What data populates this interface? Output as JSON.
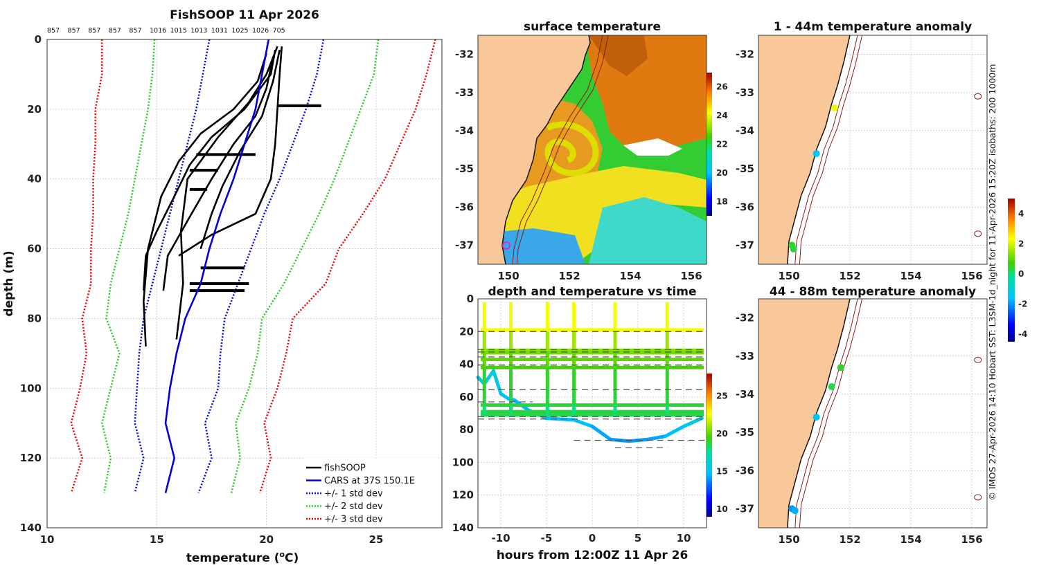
{
  "chart_data": [
    {
      "type": "line",
      "title": "FishSOOP 11 Apr 2026",
      "xlabel": "temperature (°C)",
      "xlabel_main": "temperature (",
      "xlabel_super": "o",
      "xlabel_tail": "C)",
      "ylabel": "depth (m)",
      "xlim": [
        10,
        28
      ],
      "ylim": [
        0,
        140
      ],
      "xticks": [
        10,
        15,
        20,
        25
      ],
      "yticks": [
        0,
        20,
        40,
        60,
        80,
        100,
        120,
        140
      ],
      "top_labels": [
        "857",
        "857",
        "857",
        "857",
        "857",
        "1016",
        "1015",
        "1013",
        "1031",
        "1025",
        "1026",
        "705"
      ],
      "legend": [
        {
          "label": "fishSOOP",
          "color": "#000000",
          "style": "solid"
        },
        {
          "label": "CARS at 37S 150.1E",
          "color": "#0000dd",
          "style": "solid"
        },
        {
          "label": "+/- 1 std dev",
          "color": "#0000dd",
          "style": "dotted"
        },
        {
          "label": "+/- 2 std dev",
          "color": "#22cc22",
          "style": "dotted"
        },
        {
          "label": "+/- 3 std dev",
          "color": "#ee0000",
          "style": "dotted"
        }
      ],
      "depths": [
        0,
        10,
        20,
        30,
        40,
        50,
        60,
        70,
        80,
        90,
        100,
        110,
        120,
        130
      ],
      "cars_mean": [
        20.1,
        19.8,
        19.5,
        19.0,
        18.5,
        17.9,
        17.4,
        17.0,
        16.3,
        15.9,
        15.6,
        15.4,
        15.8,
        15.4
      ],
      "plus1": [
        22.6,
        22.3,
        21.8,
        21.2,
        20.6,
        19.9,
        19.3,
        18.7,
        18.1,
        17.9,
        17.8,
        17.2,
        17.5,
        16.9
      ],
      "minus1": [
        17.4,
        17.1,
        16.8,
        16.4,
        16.0,
        15.6,
        15.2,
        14.8,
        14.4,
        14.2,
        14.1,
        14.0,
        14.4,
        14.0
      ],
      "plus2": [
        25.1,
        24.9,
        24.3,
        23.7,
        23.1,
        22.4,
        21.6,
        20.8,
        19.8,
        19.6,
        19.2,
        18.6,
        18.8,
        18.4
      ],
      "minus2": [
        14.9,
        14.8,
        14.6,
        14.3,
        14.0,
        13.7,
        13.3,
        12.9,
        12.7,
        13.3,
        12.9,
        12.5,
        12.9,
        12.6
      ],
      "plus3": [
        27.7,
        27.3,
        26.8,
        26.1,
        25.4,
        24.4,
        23.3,
        22.7,
        21.2,
        20.9,
        20.5,
        19.9,
        20.2,
        19.7
      ],
      "minus3": [
        12.5,
        12.5,
        12.2,
        12.2,
        12.1,
        12.1,
        12.0,
        12.0,
        11.6,
        11.8,
        11.5,
        11.1,
        11.6,
        11.1
      ],
      "fishsoop_profiles": [
        {
          "t": [
            20.7,
            20.6,
            20.5,
            20.4,
            20.2,
            19.5,
            17.5,
            16.5,
            16.0
          ],
          "d": [
            2,
            10,
            20,
            30,
            40,
            50,
            56,
            60,
            62
          ]
        },
        {
          "t": [
            20.4,
            20.2,
            19.0,
            17.5,
            16.5,
            15.8,
            15.0,
            14.5,
            14.4
          ],
          "d": [
            3,
            10,
            20,
            28,
            36,
            45,
            55,
            62,
            72
          ]
        },
        {
          "t": [
            20.0,
            19.6,
            18.5,
            17.0,
            16.0,
            15.2,
            14.6,
            14.4,
            14.5
          ],
          "d": [
            4,
            12,
            20,
            27,
            35,
            45,
            60,
            75,
            88
          ]
        },
        {
          "t": [
            20.6,
            20.3,
            19.8,
            18.8,
            18.0,
            17.5,
            17.2,
            17.0
          ],
          "d": [
            3,
            12,
            22,
            32,
            42,
            50,
            56,
            60
          ]
        },
        {
          "t": [
            20.3,
            20.0,
            19.5,
            18.5,
            17.5,
            16.4,
            15.5,
            15.3
          ],
          "d": [
            5,
            14,
            22,
            30,
            40,
            52,
            62,
            72
          ]
        },
        {
          "t": [
            20.5,
            20.0,
            19.2,
            17.8,
            16.4,
            16.1,
            16.2,
            15.9
          ],
          "d": [
            2,
            10,
            18,
            28,
            40,
            55,
            70,
            86
          ]
        }
      ],
      "fishsoop_bursts": [
        {
          "t_min": 20.5,
          "t_max": 22.5,
          "d": 19
        },
        {
          "t_min": 16.8,
          "t_max": 19.5,
          "d": 33
        },
        {
          "t_min": 16.5,
          "t_max": 17.8,
          "d": 37.5
        },
        {
          "t_min": 16.5,
          "t_max": 17.3,
          "d": 43
        },
        {
          "t_min": 17.0,
          "t_max": 19.0,
          "d": 65.5
        },
        {
          "t_min": 16.5,
          "t_max": 19.2,
          "d": 70
        },
        {
          "t_min": 16.5,
          "t_max": 19.0,
          "d": 72
        }
      ]
    },
    {
      "type": "heatmap",
      "title": "surface temperature",
      "xlim": [
        149,
        156.5
      ],
      "ylim": [
        -37.5,
        -31.5
      ],
      "xticks": [
        150,
        152,
        154,
        156
      ],
      "yticks": [
        -32,
        -33,
        -34,
        -35,
        -36,
        -37
      ],
      "colorbar_ticks": [
        18,
        20,
        22,
        24,
        26
      ],
      "colorbar_range": [
        17,
        27
      ]
    },
    {
      "type": "scatter",
      "title": "depth and temperature vs time",
      "xlabel": "hours from 12:00Z 11 Apr 26",
      "ylabel": "",
      "xlim": [
        -12.5,
        12.5
      ],
      "ylim": [
        0,
        140
      ],
      "xticks": [
        -10,
        -5,
        0,
        5,
        10
      ],
      "yticks": [
        0,
        20,
        40,
        60,
        80,
        100,
        120,
        140
      ],
      "colorbar_ticks": [
        10,
        15,
        20,
        25
      ],
      "colorbar_range": [
        9,
        28
      ],
      "casts_hours": [
        -11.8,
        -8.9,
        -4.9,
        -2.0,
        2.5,
        8.2
      ],
      "horizontal_tracks": [
        {
          "depth": 19,
          "temp": 22.5
        },
        {
          "depth": 31.5,
          "temp": 20.5
        },
        {
          "depth": 33,
          "temp": 20.3
        },
        {
          "depth": 37,
          "temp": 20.0
        },
        {
          "depth": 42,
          "temp": 19.5
        },
        {
          "depth": 65,
          "temp": 18.8
        },
        {
          "depth": 69,
          "temp": 18.7
        },
        {
          "depth": 71,
          "temp": 18.6
        }
      ],
      "dashed_levels": [
        {
          "depth": 20,
          "x_from": -12.5,
          "x_to": 12.5
        },
        {
          "depth": 31,
          "x_from": -12.5,
          "x_to": 12.5
        },
        {
          "depth": 32.5,
          "x_from": -12.5,
          "x_to": 12.5
        },
        {
          "depth": 35.5,
          "x_from": -12.5,
          "x_to": 12.5
        },
        {
          "depth": 40.5,
          "x_from": -12.5,
          "x_to": 12.5
        },
        {
          "depth": 55.5,
          "x_from": -12.5,
          "x_to": 12.5
        },
        {
          "depth": 63,
          "x_from": -12.5,
          "x_to": -6.5
        },
        {
          "depth": 72,
          "x_from": -12.5,
          "x_to": 12.5
        },
        {
          "depth": 73.5,
          "x_from": -12.5,
          "x_to": 12.5
        },
        {
          "depth": 86.5,
          "x_from": -2.0,
          "x_to": 12.5
        },
        {
          "depth": 91,
          "x_from": 2.5,
          "x_to": 8.2
        }
      ],
      "bottom_trace": [
        {
          "h": -12.5,
          "d": 48,
          "temp": 16
        },
        {
          "h": -11.8,
          "d": 52,
          "temp": 15.5
        },
        {
          "h": -10.8,
          "d": 44,
          "temp": 16
        },
        {
          "h": -10.0,
          "d": 58,
          "temp": 15
        },
        {
          "h": -9.2,
          "d": 61,
          "temp": 14.5
        },
        {
          "h": -8.5,
          "d": 62,
          "temp": 14.5
        },
        {
          "h": -7.0,
          "d": 68,
          "temp": 14.5
        },
        {
          "h": -5.0,
          "d": 73,
          "temp": 14.5
        },
        {
          "h": -2.0,
          "d": 74,
          "temp": 15
        },
        {
          "h": 0.0,
          "d": 78,
          "temp": 14.5
        },
        {
          "h": 2.0,
          "d": 86,
          "temp": 14.0
        },
        {
          "h": 4.0,
          "d": 87,
          "temp": 14.0
        },
        {
          "h": 6.0,
          "d": 86,
          "temp": 14.0
        },
        {
          "h": 8.0,
          "d": 84,
          "temp": 14.5
        },
        {
          "h": 10.0,
          "d": 78,
          "temp": 15.0
        },
        {
          "h": 12.0,
          "d": 73,
          "temp": 16.0
        }
      ]
    },
    {
      "type": "scatter",
      "title": "1 - 44m temperature anomaly",
      "xlim": [
        149,
        156.5
      ],
      "ylim": [
        -37.5,
        -31.5
      ],
      "xticks": [
        150,
        152,
        154,
        156
      ],
      "yticks": [
        -32,
        -33,
        -34,
        -35,
        -36,
        -37
      ],
      "points": [
        {
          "lon": 151.5,
          "lat": -33.4,
          "anom": 2.2
        },
        {
          "lon": 150.9,
          "lat": -34.6,
          "anom": -1.5
        },
        {
          "lon": 150.1,
          "lat": -37.0,
          "anom": 0.5
        },
        {
          "lon": 150.15,
          "lat": -37.1,
          "anom": 0.4
        }
      ]
    },
    {
      "type": "scatter",
      "title": "44 - 88m temperature anomaly",
      "xlim": [
        149,
        156.5
      ],
      "ylim": [
        -37.5,
        -31.5
      ],
      "xticks": [
        150,
        152,
        154,
        156
      ],
      "yticks": [
        -32,
        -33,
        -34,
        -35,
        -36,
        -37
      ],
      "colorbar_ticks": [
        4,
        2,
        0,
        -2,
        -4
      ],
      "colorbar_range": [
        -4.5,
        5
      ],
      "points": [
        {
          "lon": 151.7,
          "lat": -33.3,
          "anom": 0.5
        },
        {
          "lon": 151.4,
          "lat": -33.8,
          "anom": 0.3
        },
        {
          "lon": 150.9,
          "lat": -34.6,
          "anom": -1.5
        },
        {
          "lon": 150.1,
          "lat": -37.0,
          "anom": -2.0
        },
        {
          "lon": 150.2,
          "lat": -37.05,
          "anom": -1.8
        }
      ]
    }
  ],
  "side_note": "© IMOS 27-Apr-2026 14:10 Hobart SST: L3SM-1d_night for 11-Apr-2026 15:20Z isobaths: 200  1000m"
}
